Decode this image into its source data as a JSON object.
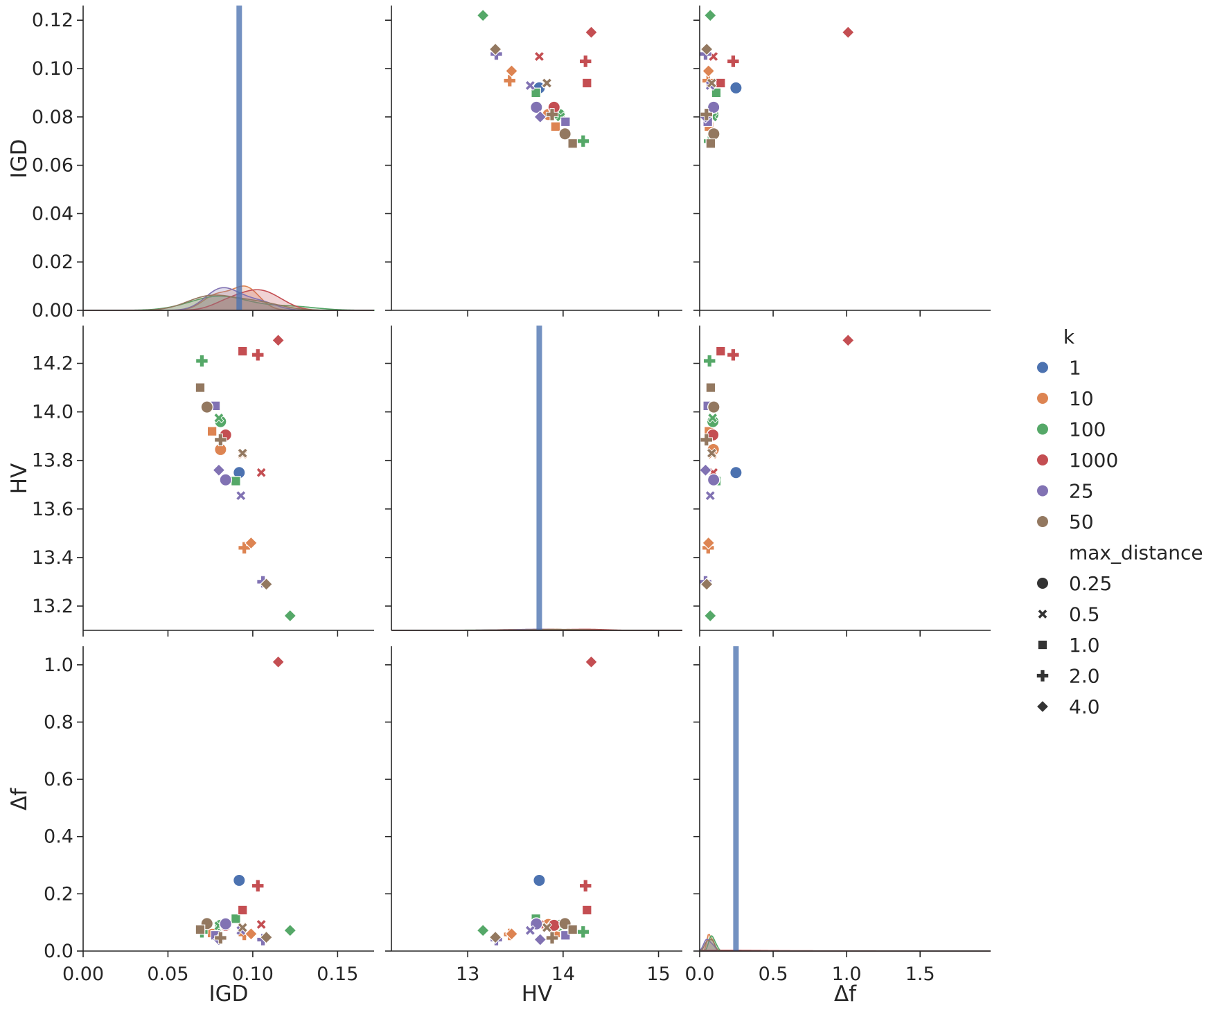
{
  "chart_data": {
    "type": "pairplot",
    "variables": [
      "IGD",
      "HV",
      "Δf"
    ],
    "axis_labels": {
      "IGD": "IGD",
      "HV": "HV",
      "Δf": "Δf"
    },
    "ranges": {
      "IGD": {
        "lim": [
          0.0,
          0.1715
        ],
        "ticks": [
          0.0,
          0.05,
          0.1,
          0.15
        ],
        "tick_labels": [
          "0.00",
          "0.05",
          "0.10",
          "0.15"
        ]
      },
      "IGD_y": {
        "lim": [
          0.0,
          0.1255
        ],
        "ticks": [
          0.0,
          0.02,
          0.04,
          0.06,
          0.08,
          0.1,
          0.12
        ],
        "tick_labels": [
          "0.00",
          "0.02",
          "0.04",
          "0.06",
          "0.08",
          "0.10",
          "0.12"
        ]
      },
      "HV": {
        "lim": [
          12.2,
          15.25
        ],
        "ticks": [
          13,
          14,
          15
        ],
        "tick_labels": [
          "13",
          "14",
          "15"
        ]
      },
      "HV_y": {
        "lim": [
          13.1,
          14.35
        ],
        "ticks": [
          13.2,
          13.4,
          13.6,
          13.8,
          14.0,
          14.2
        ],
        "tick_labels": [
          "13.2",
          "13.4",
          "13.6",
          "13.8",
          "14.0",
          "14.2"
        ]
      },
      "Δf": {
        "lim": [
          0.0,
          1.98
        ],
        "ticks": [
          0.0,
          0.5,
          1.0,
          1.5
        ],
        "tick_labels": [
          "0.0",
          "0.5",
          "1.0",
          "1.5"
        ]
      },
      "Δf_y": {
        "lim": [
          0.0,
          1.06
        ],
        "ticks": [
          0.0,
          0.2,
          0.4,
          0.6,
          0.8,
          1.0
        ],
        "tick_labels": [
          "0.0",
          "0.2",
          "0.4",
          "0.6",
          "0.8",
          "1.0"
        ]
      }
    },
    "hue": {
      "title": "k",
      "levels": [
        {
          "label": "1",
          "color": "#4c72b0"
        },
        {
          "label": "10",
          "color": "#dd8452"
        },
        {
          "label": "100",
          "color": "#55a868"
        },
        {
          "label": "1000",
          "color": "#c44e52"
        },
        {
          "label": "25",
          "color": "#8172b3"
        },
        {
          "label": "50",
          "color": "#937860"
        }
      ]
    },
    "style": {
      "title": "max_distance",
      "levels": [
        {
          "label": "0.25",
          "marker": "circle"
        },
        {
          "label": "0.5",
          "marker": "x"
        },
        {
          "label": "1.0",
          "marker": "square"
        },
        {
          "label": "2.0",
          "marker": "plus"
        },
        {
          "label": "4.0",
          "marker": "diamond"
        }
      ]
    },
    "points": [
      {
        "k": "1",
        "md": "0.25",
        "IGD": 0.092,
        "HV": 13.75,
        "Δf": 0.247
      },
      {
        "k": "10",
        "md": "0.25",
        "IGD": 0.081,
        "HV": 13.845,
        "Δf": 0.093
      },
      {
        "k": "10",
        "md": "0.5",
        "IGD": 0.094,
        "HV": 13.825,
        "Δf": 0.085
      },
      {
        "k": "10",
        "md": "1.0",
        "IGD": 0.076,
        "HV": 13.92,
        "Δf": 0.063
      },
      {
        "k": "10",
        "md": "2.0",
        "IGD": 0.095,
        "HV": 13.44,
        "Δf": 0.058
      },
      {
        "k": "10",
        "md": "4.0",
        "IGD": 0.099,
        "HV": 13.46,
        "Δf": 0.06
      },
      {
        "k": "100",
        "md": "0.25",
        "IGD": 0.081,
        "HV": 13.96,
        "Δf": 0.09
      },
      {
        "k": "100",
        "md": "0.5",
        "IGD": 0.08,
        "HV": 13.975,
        "Δf": 0.088
      },
      {
        "k": "100",
        "md": "1.0",
        "IGD": 0.09,
        "HV": 13.715,
        "Δf": 0.113
      },
      {
        "k": "100",
        "md": "2.0",
        "IGD": 0.07,
        "HV": 14.21,
        "Δf": 0.067
      },
      {
        "k": "100",
        "md": "4.0",
        "IGD": 0.122,
        "HV": 13.16,
        "Δf": 0.072
      },
      {
        "k": "1000",
        "md": "0.25",
        "IGD": 0.084,
        "HV": 13.905,
        "Δf": 0.09
      },
      {
        "k": "1000",
        "md": "0.5",
        "IGD": 0.105,
        "HV": 13.75,
        "Δf": 0.093
      },
      {
        "k": "1000",
        "md": "1.0",
        "IGD": 0.094,
        "HV": 14.25,
        "Δf": 0.143
      },
      {
        "k": "1000",
        "md": "2.0",
        "IGD": 0.103,
        "HV": 14.235,
        "Δf": 0.228
      },
      {
        "k": "1000",
        "md": "4.0",
        "IGD": 0.115,
        "HV": 14.295,
        "Δf": 1.01
      },
      {
        "k": "25",
        "md": "0.25",
        "IGD": 0.084,
        "HV": 13.72,
        "Δf": 0.095
      },
      {
        "k": "25",
        "md": "0.5",
        "IGD": 0.093,
        "HV": 13.655,
        "Δf": 0.072
      },
      {
        "k": "25",
        "md": "1.0",
        "IGD": 0.078,
        "HV": 14.025,
        "Δf": 0.055
      },
      {
        "k": "25",
        "md": "2.0",
        "IGD": 0.106,
        "HV": 13.3,
        "Δf": 0.04
      },
      {
        "k": "25",
        "md": "4.0",
        "IGD": 0.08,
        "HV": 13.76,
        "Δf": 0.04
      },
      {
        "k": "50",
        "md": "0.25",
        "IGD": 0.073,
        "HV": 14.02,
        "Δf": 0.096
      },
      {
        "k": "50",
        "md": "0.5",
        "IGD": 0.094,
        "HV": 13.83,
        "Δf": 0.082
      },
      {
        "k": "50",
        "md": "1.0",
        "IGD": 0.069,
        "HV": 14.1,
        "Δf": 0.075
      },
      {
        "k": "50",
        "md": "2.0",
        "IGD": 0.081,
        "HV": 13.885,
        "Δf": 0.046
      },
      {
        "k": "50",
        "md": "4.0",
        "IGD": 0.108,
        "HV": 13.29,
        "Δf": 0.048
      }
    ],
    "diagonal_bars": [
      {
        "variable": "IGD",
        "value": 0.092,
        "color": "#4c72b0"
      },
      {
        "variable": "HV",
        "value": 13.75,
        "color": "#4c72b0"
      },
      {
        "variable": "Δf",
        "value": 0.247,
        "color": "#4c72b0"
      }
    ],
    "legend_position": "right"
  }
}
